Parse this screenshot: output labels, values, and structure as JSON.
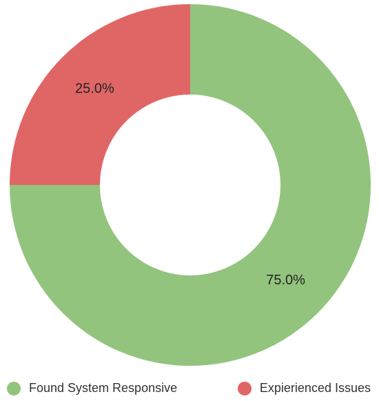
{
  "chart_data": {
    "type": "donut",
    "categories": [
      "Found System Responsive",
      "Expierienced Issues"
    ],
    "values": [
      75,
      25
    ],
    "value_labels": [
      "75.0%",
      "25.0%"
    ],
    "colors": [
      "#93c47d",
      "#e06666"
    ],
    "legend": "bottom"
  }
}
